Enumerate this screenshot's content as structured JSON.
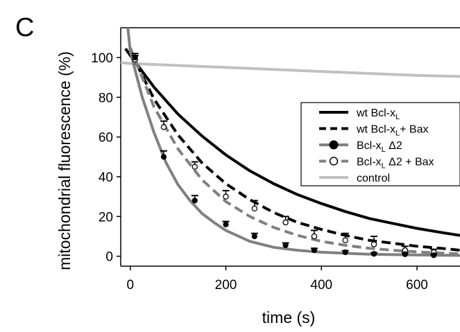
{
  "panel_label": "C",
  "chart_data": {
    "type": "line",
    "xlabel": "time (s)",
    "ylabel": "mitochondrial fluorescence (%)",
    "xlim": [
      -20,
      690
    ],
    "ylim": [
      -5,
      115
    ],
    "xticks": [
      0,
      200,
      400,
      600
    ],
    "yticks": [
      0,
      20,
      40,
      60,
      80,
      100
    ],
    "legend_position": "right",
    "series": [
      {
        "name": "wt Bcl-xL",
        "label_main": "wt Bcl-x",
        "label_sub": "L",
        "label_after": "",
        "color": "#000000",
        "dash": "solid",
        "marker": "none",
        "fit_x": [
          -10,
          0,
          50,
          100,
          150,
          200,
          250,
          300,
          350,
          400,
          450,
          500,
          550,
          600,
          650,
          690
        ],
        "fit_y": [
          104.5,
          101,
          85,
          71.5,
          60.5,
          51,
          43,
          36.5,
          31,
          26.5,
          22.5,
          19,
          16.5,
          14,
          12,
          10.5
        ]
      },
      {
        "name": "wt Bcl-xL+ Bax",
        "label_main": "wt Bcl-x",
        "label_sub": "L",
        "label_after": "+ Bax",
        "color": "#000000",
        "dash": "dashed",
        "marker": "none",
        "fit_x": [
          0,
          50,
          100,
          150,
          200,
          250,
          300,
          350,
          400,
          450,
          500,
          550,
          600,
          650,
          690
        ],
        "fit_y": [
          103,
          79,
          61,
          47,
          36.5,
          28.5,
          22,
          17,
          13.5,
          10.5,
          8,
          6.5,
          5,
          4,
          3
        ]
      },
      {
        "name": "Bcl-xL Δ2",
        "label_main": "Bcl-x",
        "label_sub": "L",
        "label_after": " Δ2",
        "color": "#808080",
        "dash": "solid",
        "marker": "filled-circle",
        "fit_x": [
          -5,
          0,
          25,
          50,
          75,
          100,
          125,
          150,
          175,
          200,
          250,
          300,
          350,
          400,
          450,
          500,
          550,
          600,
          650,
          690
        ],
        "fit_y": [
          115,
          103,
          80,
          62,
          47,
          36,
          28,
          21.5,
          17,
          13,
          7.5,
          4.5,
          3,
          2,
          1.5,
          1,
          0.8,
          0.6,
          0.5,
          0.4
        ],
        "points_x": [
          10,
          70,
          135,
          200,
          260,
          325,
          385,
          450,
          510,
          575,
          635
        ],
        "points_y": [
          100,
          50,
          28,
          16,
          10,
          5.5,
          3,
          2,
          1.2,
          1,
          0.5
        ],
        "err": [
          2,
          3,
          2.5,
          1.5,
          1.5,
          1.2,
          1,
          0.8,
          0.6,
          0.6,
          0.5
        ]
      },
      {
        "name": "Bcl-xL Δ2 + Bax",
        "label_main": "Bcl-x",
        "label_sub": "L",
        "label_after": " Δ2 + Bax",
        "color": "#808080",
        "dash": "dashed",
        "marker": "open-circle",
        "fit_x": [
          0,
          50,
          100,
          150,
          200,
          250,
          300,
          350,
          400,
          450,
          500,
          550,
          600,
          650,
          690
        ],
        "fit_y": [
          105,
          75,
          54,
          38.5,
          27.5,
          20,
          14.5,
          10.5,
          7.5,
          5.5,
          4,
          3,
          2.2,
          1.6,
          1.2
        ],
        "points_x": [
          10,
          70,
          135,
          200,
          260,
          325,
          385,
          450,
          510,
          575,
          635
        ],
        "points_y": [
          99,
          65,
          45,
          30,
          24,
          17,
          10,
          8,
          6,
          3,
          2
        ],
        "err": [
          2,
          3,
          2.5,
          3,
          4,
          3,
          3,
          3.5,
          4,
          2,
          1.5
        ]
      },
      {
        "name": "control",
        "label_main": "control",
        "label_sub": "",
        "label_after": "",
        "color": "#c0c0c0",
        "dash": "solid",
        "marker": "none",
        "fit_x": [
          -20,
          0,
          200,
          400,
          600,
          690
        ],
        "fit_y": [
          97.5,
          97,
          95,
          93,
          91,
          90.5
        ]
      }
    ]
  }
}
